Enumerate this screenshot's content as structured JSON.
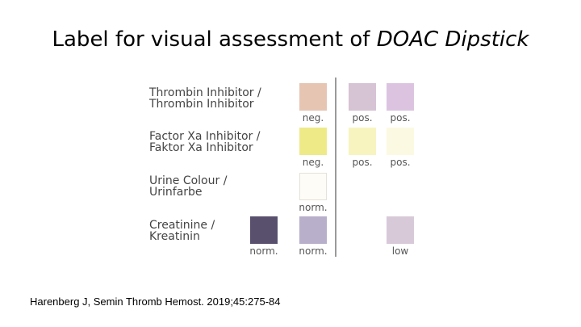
{
  "title": {
    "main": "Label for visual assessment of ",
    "italic": "DOAC Dipstick"
  },
  "rows": [
    {
      "line1": "Thrombin Inhibitor /",
      "line2": "Thrombin Inhibitor",
      "swatches": {
        "ref": {
          "color": "#E6C5B3",
          "caption": "neg."
        },
        "pos1": {
          "color": "#D6C3D4",
          "caption": "pos."
        },
        "pos2": {
          "color": "#DCC4E1",
          "caption": "pos."
        }
      }
    },
    {
      "line1": "Factor Xa Inhibitor /",
      "line2": "Faktor Xa Inhibitor",
      "swatches": {
        "ref": {
          "color": "#EEEA88",
          "caption": "neg."
        },
        "pos1": {
          "color": "#F7F4C0",
          "caption": "pos."
        },
        "pos2": {
          "color": "#FCF9E2",
          "caption": "pos."
        }
      }
    },
    {
      "line1": "Urine Colour /",
      "line2": "Urinfarbe",
      "swatches": {
        "ref": {
          "color": "#FDFCF6",
          "caption": "norm."
        }
      }
    },
    {
      "line1": "Creatinine /",
      "line2": "Kreatinin",
      "swatches": {
        "left": {
          "color": "#59506E",
          "caption": "norm."
        },
        "ref": {
          "color": "#B8AFCB",
          "caption": "norm."
        },
        "pos2": {
          "color": "#D8C9D9",
          "caption": "low"
        }
      }
    }
  ],
  "citation": "Harenberg J, Semin Thromb Hemost. 2019;45:275-84"
}
